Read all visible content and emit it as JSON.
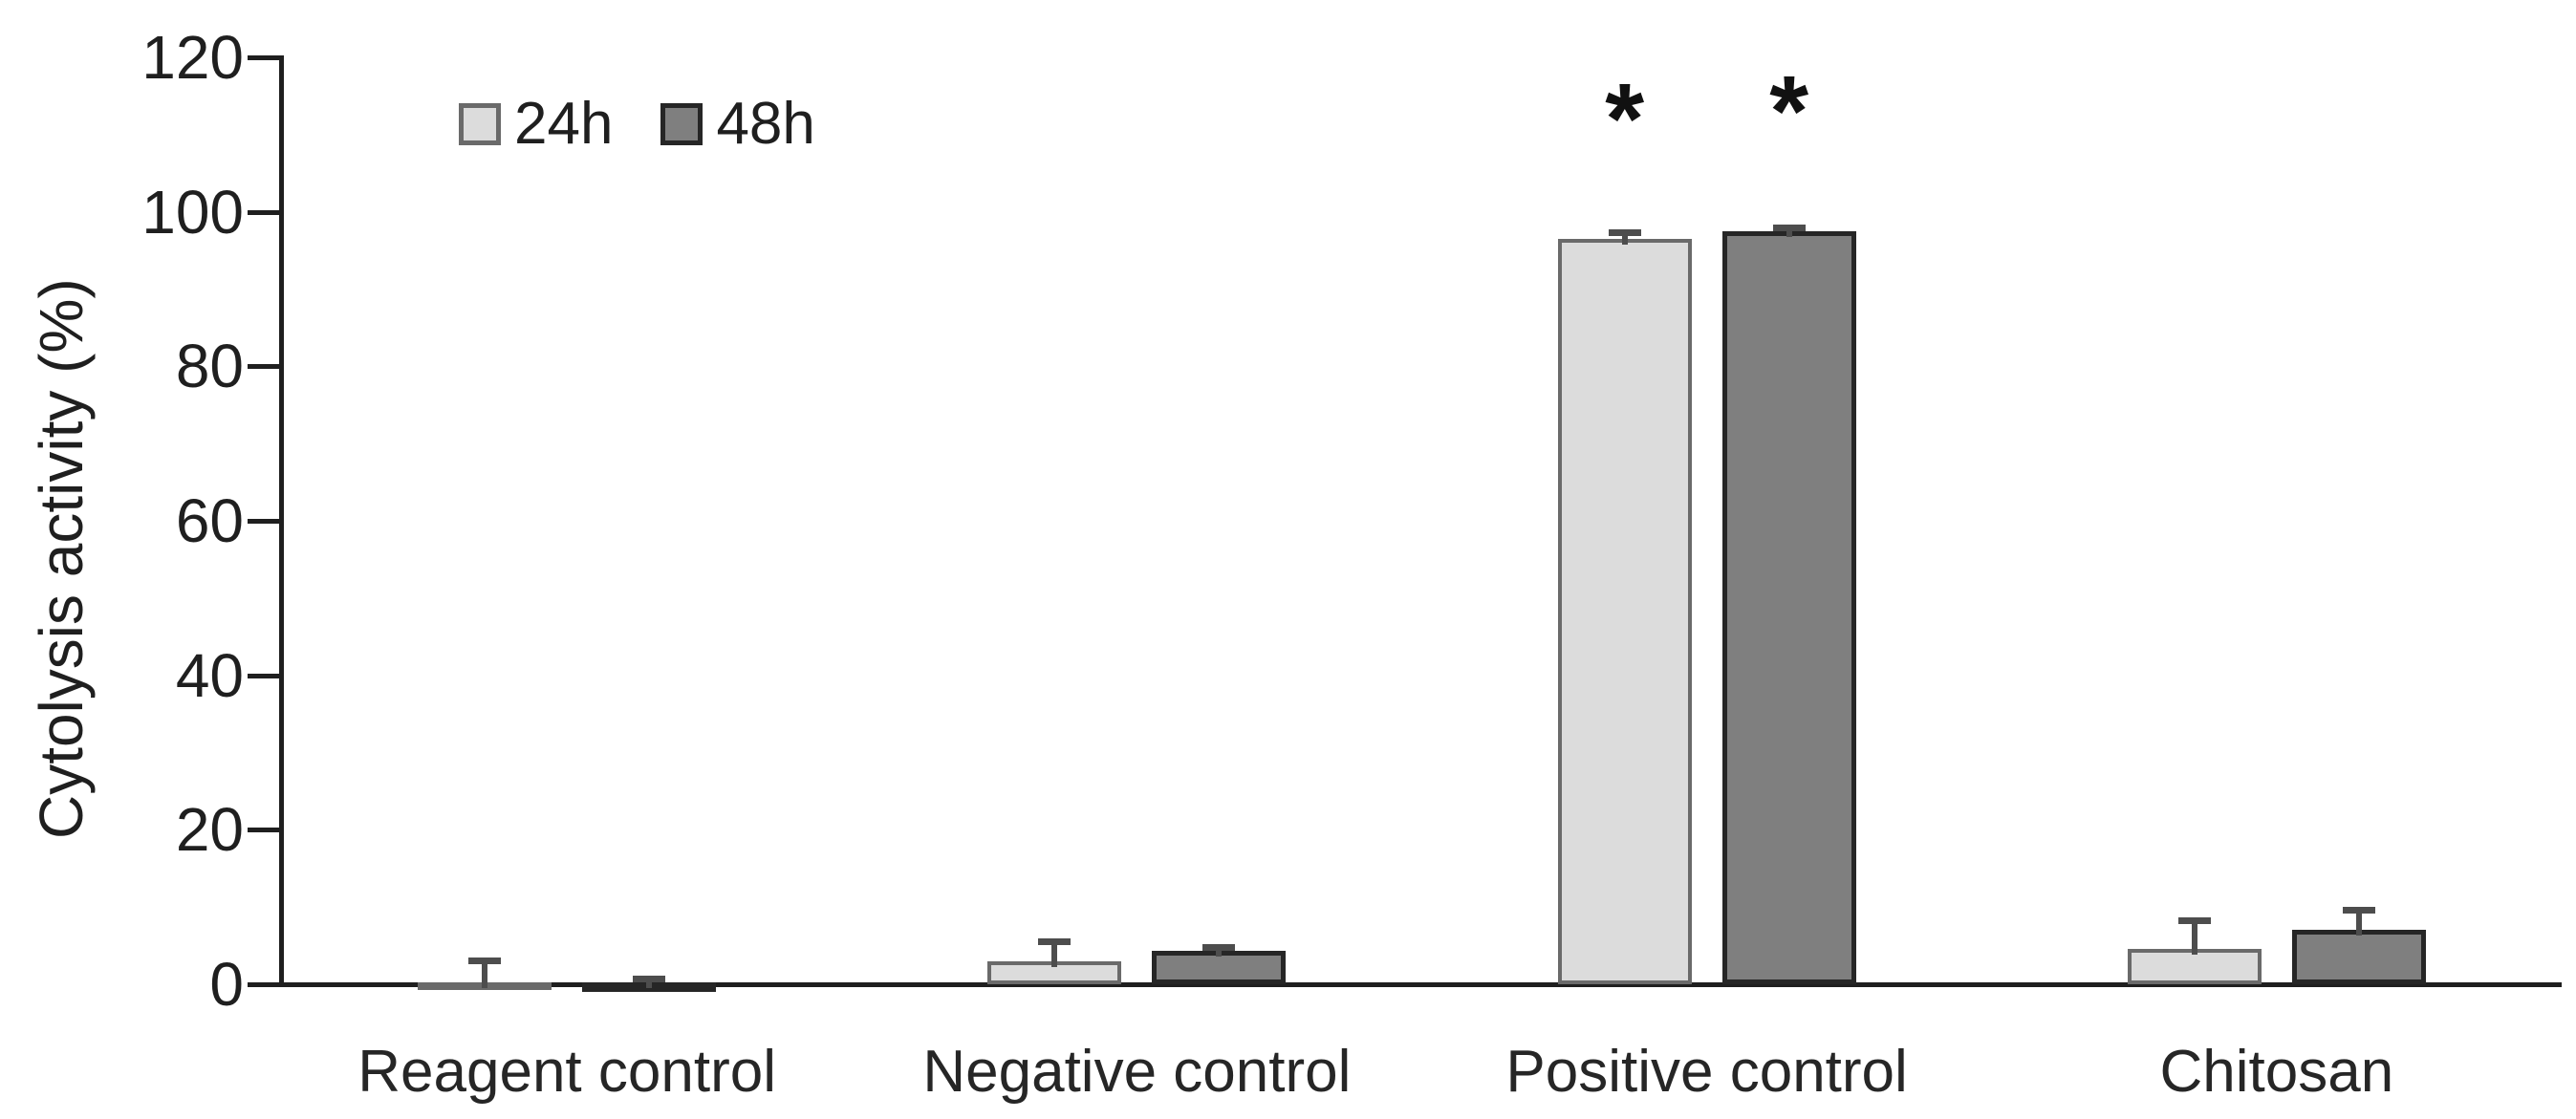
{
  "chart_data": {
    "type": "bar",
    "title": "",
    "ylabel": "Cytolysis activity (%)",
    "xlabel": "",
    "ylim": [
      0,
      120
    ],
    "yticks": [
      0,
      20,
      40,
      60,
      80,
      100,
      120
    ],
    "grid": false,
    "legend_position": "top-left-inside",
    "legend_labels": [
      "24h",
      "48h"
    ],
    "categories": [
      "Reagent control",
      "Negative control",
      "Positive control",
      "Chitosan"
    ],
    "series": [
      {
        "name": "24h",
        "fill": "#dcdcdc",
        "border": "#6a6a6a",
        "values": [
          0.2,
          3.0,
          96.5,
          4.6
        ],
        "error_up": [
          3.3,
          3.0,
          1.2,
          4.0
        ]
      },
      {
        "name": "48h",
        "fill": "#7f7f7f",
        "border": "#262626",
        "values": [
          0.2,
          4.3,
          97.5,
          7.0
        ],
        "error_up": [
          0.9,
          0.9,
          0.8,
          3.0
        ]
      }
    ],
    "annotations": [
      {
        "series": 0,
        "category": 2,
        "text": "*"
      },
      {
        "series": 1,
        "category": 2,
        "text": "*"
      }
    ]
  },
  "colors": {
    "axis": "#1f1f1f",
    "error_bar": "#4d4d4d",
    "background": "#ffffff"
  }
}
